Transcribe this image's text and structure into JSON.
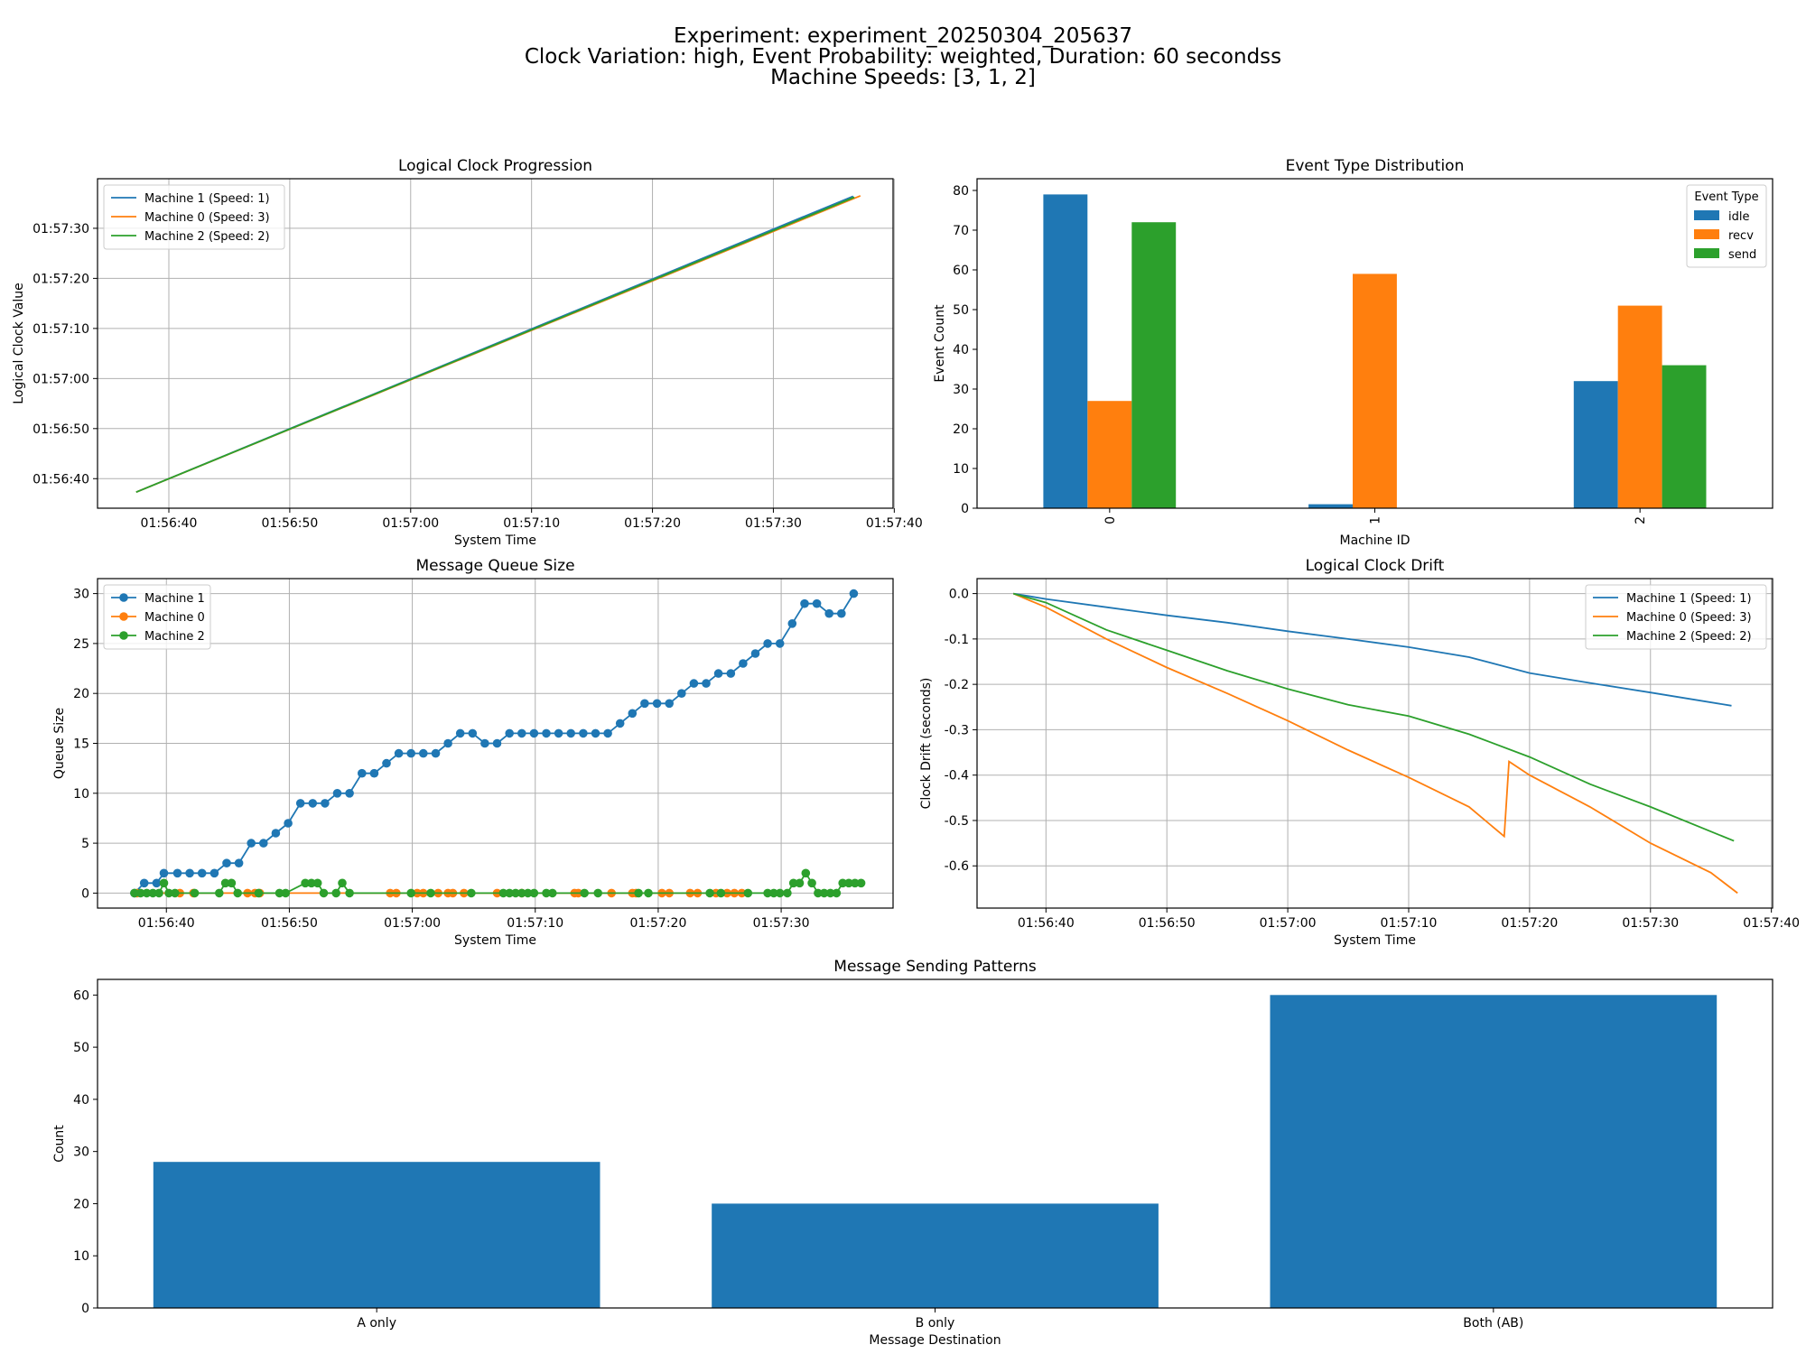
{
  "figure": {
    "suptitle": [
      "Experiment: experiment_20250304_205637",
      "Clock Variation: high, Event Probability: weighted, Duration: 60 secondss",
      "Machine Speeds: [3, 1, 2]"
    ]
  },
  "colors": {
    "machine1": "#1f77b4",
    "machine0": "#ff7f0e",
    "machine2": "#2ca02c",
    "idle": "#1f77b4",
    "recv": "#ff7f0e",
    "send": "#2ca02c",
    "bar": "#1f77b4"
  },
  "chart_data": [
    {
      "id": "clock",
      "type": "line",
      "title": "Logical Clock Progression",
      "xlabel": "System Time",
      "ylabel": "Logical Clock Value",
      "grid": true,
      "legend": "upper-left",
      "xlim": [
        "01:56:34.1",
        "01:57:39.9"
      ],
      "ylim": [
        "01:56:34.1",
        "01:57:39.9"
      ],
      "xticks": [
        "01:56:40",
        "01:56:50",
        "01:57:00",
        "01:57:10",
        "01:57:20",
        "01:57:30",
        "01:57:40"
      ],
      "yticks": [
        "01:56:40",
        "01:56:50",
        "01:57:00",
        "01:57:10",
        "01:57:20",
        "01:57:30"
      ],
      "series": [
        {
          "name": "Machine 1 (Speed: 1)",
          "color": "#1f77b4",
          "points": [
            [
              "01:56:37.3",
              "01:56:37.3"
            ],
            [
              "01:57:36.6",
              "01:57:36.4"
            ]
          ]
        },
        {
          "name": "Machine 0 (Speed: 3)",
          "color": "#ff7f0e",
          "points": [
            [
              "01:56:37.3",
              "01:56:37.3"
            ],
            [
              "01:57:37.2",
              "01:57:36.5"
            ]
          ]
        },
        {
          "name": "Machine 2 (Speed: 2)",
          "color": "#2ca02c",
          "points": [
            [
              "01:56:37.3",
              "01:56:37.3"
            ],
            [
              "01:57:36.7",
              "01:57:36.2"
            ]
          ]
        }
      ]
    },
    {
      "id": "events",
      "type": "bar",
      "title": "Event Type Distribution",
      "xlabel": "Machine ID",
      "ylabel": "Event Count",
      "grid": false,
      "legend": "upper-right",
      "legend_title": "Event Type",
      "categories": [
        "0",
        "1",
        "2"
      ],
      "ylim": [
        0,
        82.95
      ],
      "yticks": [
        0,
        10,
        20,
        30,
        40,
        50,
        60,
        70,
        80
      ],
      "series": [
        {
          "name": "idle",
          "color": "#1f77b4",
          "values": [
            79,
            1,
            32
          ]
        },
        {
          "name": "recv",
          "color": "#ff7f0e",
          "values": [
            27,
            59,
            51
          ]
        },
        {
          "name": "send",
          "color": "#2ca02c",
          "values": [
            72,
            0,
            36
          ]
        }
      ]
    },
    {
      "id": "queue",
      "type": "line",
      "title": "Message Queue Size",
      "xlabel": "System Time",
      "ylabel": "Queue Size",
      "grid": true,
      "legend": "upper-left",
      "xlim": [
        "01:56:34.4",
        "01:57:39.1"
      ],
      "ylim": [
        -1.5,
        31.5
      ],
      "xticks": [
        "01:56:40",
        "01:56:50",
        "01:57:00",
        "01:57:10",
        "01:57:20",
        "01:57:30"
      ],
      "yticks": [
        0,
        5,
        10,
        15,
        20,
        25,
        30
      ],
      "series": [
        {
          "name": "Machine 1",
          "color": "#1f77b4",
          "points": [
            [
              "01:56:37.4",
              0
            ],
            [
              "01:56:38.2",
              1
            ],
            [
              "01:56:39.2",
              1
            ],
            [
              "01:56:39.8",
              2
            ],
            [
              "01:56:40.9",
              2
            ],
            [
              "01:56:41.9",
              2
            ],
            [
              "01:56:42.9",
              2
            ],
            [
              "01:56:43.9",
              2
            ],
            [
              "01:56:44.9",
              3
            ],
            [
              "01:56:45.9",
              3
            ],
            [
              "01:56:46.9",
              5
            ],
            [
              "01:56:47.9",
              5
            ],
            [
              "01:56:48.9",
              6
            ],
            [
              "01:56:49.9",
              7
            ],
            [
              "01:56:50.9",
              9
            ],
            [
              "01:56:51.9",
              9
            ],
            [
              "01:56:52.9",
              9
            ],
            [
              "01:56:53.9",
              10
            ],
            [
              "01:56:54.9",
              10
            ],
            [
              "01:56:55.9",
              12
            ],
            [
              "01:56:56.9",
              12
            ],
            [
              "01:56:57.9",
              13
            ],
            [
              "01:56:58.9",
              14
            ],
            [
              "01:56:59.9",
              14
            ],
            [
              "01:57:00.9",
              14
            ],
            [
              "01:57:01.9",
              14
            ],
            [
              "01:57:02.9",
              15
            ],
            [
              "01:57:03.9",
              16
            ],
            [
              "01:57:04.9",
              16
            ],
            [
              "01:57:05.9",
              15
            ],
            [
              "01:57:06.9",
              15
            ],
            [
              "01:57:07.9",
              16
            ],
            [
              "01:57:08.9",
              16
            ],
            [
              "01:57:09.9",
              16
            ],
            [
              "01:57:10.9",
              16
            ],
            [
              "01:57:11.9",
              16
            ],
            [
              "01:57:12.9",
              16
            ],
            [
              "01:57:13.9",
              16
            ],
            [
              "01:57:14.9",
              16
            ],
            [
              "01:57:15.9",
              16
            ],
            [
              "01:57:16.9",
              17
            ],
            [
              "01:57:17.9",
              18
            ],
            [
              "01:57:18.9",
              19
            ],
            [
              "01:57:19.9",
              19
            ],
            [
              "01:57:20.9",
              19
            ],
            [
              "01:57:21.9",
              20
            ],
            [
              "01:57:22.9",
              21
            ],
            [
              "01:57:23.9",
              21
            ],
            [
              "01:57:24.9",
              22
            ],
            [
              "01:57:25.9",
              22
            ],
            [
              "01:57:26.9",
              23
            ],
            [
              "01:57:27.9",
              24
            ],
            [
              "01:57:28.9",
              25
            ],
            [
              "01:57:29.9",
              25
            ],
            [
              "01:57:30.9",
              27
            ],
            [
              "01:57:31.9",
              29
            ],
            [
              "01:57:32.9",
              29
            ],
            [
              "01:57:33.9",
              28
            ],
            [
              "01:57:34.9",
              28
            ],
            [
              "01:57:35.9",
              30
            ]
          ]
        },
        {
          "name": "Machine 0",
          "color": "#ff7f0e",
          "points": [
            [
              "01:56:37.6",
              0
            ],
            [
              "01:56:41.1",
              0
            ],
            [
              "01:56:42.2",
              0
            ],
            [
              "01:56:46.6",
              0
            ],
            [
              "01:56:47.2",
              0
            ],
            [
              "01:56:47.6",
              0
            ],
            [
              "01:56:58.2",
              0
            ],
            [
              "01:56:58.7",
              0
            ],
            [
              "01:57:00.4",
              0
            ],
            [
              "01:57:00.9",
              0
            ],
            [
              "01:57:02.1",
              0
            ],
            [
              "01:57:02.9",
              0
            ],
            [
              "01:57:03.3",
              0
            ],
            [
              "01:57:04.2",
              0
            ],
            [
              "01:57:06.9",
              0
            ],
            [
              "01:57:08.9",
              0
            ],
            [
              "01:57:13.2",
              0
            ],
            [
              "01:57:13.5",
              0
            ],
            [
              "01:57:16.2",
              0
            ],
            [
              "01:57:17.9",
              0
            ],
            [
              "01:57:18.2",
              0
            ],
            [
              "01:57:20.3",
              0
            ],
            [
              "01:57:20.9",
              0
            ],
            [
              "01:57:22.6",
              0
            ],
            [
              "01:57:23.2",
              0
            ],
            [
              "01:57:24.7",
              0
            ],
            [
              "01:57:25.6",
              0
            ],
            [
              "01:57:26.2",
              0
            ],
            [
              "01:57:26.8",
              0
            ]
          ]
        },
        {
          "name": "Machine 2",
          "color": "#2ca02c",
          "points": [
            [
              "01:56:37.4",
              0
            ],
            [
              "01:56:37.9",
              0
            ],
            [
              "01:56:38.4",
              0
            ],
            [
              "01:56:38.9",
              0
            ],
            [
              "01:56:39.4",
              0
            ],
            [
              "01:56:39.8",
              1
            ],
            [
              "01:56:40.2",
              0
            ],
            [
              "01:56:40.7",
              0
            ],
            [
              "01:56:42.3",
              0
            ],
            [
              "01:56:44.3",
              0
            ],
            [
              "01:56:44.8",
              1
            ],
            [
              "01:56:45.3",
              1
            ],
            [
              "01:56:45.8",
              0
            ],
            [
              "01:56:47.5",
              0
            ],
            [
              "01:56:49.2",
              0
            ],
            [
              "01:56:49.7",
              0
            ],
            [
              "01:56:51.3",
              1
            ],
            [
              "01:56:51.8",
              1
            ],
            [
              "01:56:52.3",
              1
            ],
            [
              "01:56:52.8",
              0
            ],
            [
              "01:56:53.8",
              0
            ],
            [
              "01:56:54.3",
              1
            ],
            [
              "01:56:54.9",
              0
            ],
            [
              "01:56:59.9",
              0
            ],
            [
              "01:57:01.5",
              0
            ],
            [
              "01:57:04.8",
              0
            ],
            [
              "01:57:07.4",
              0
            ],
            [
              "01:57:07.9",
              0
            ],
            [
              "01:57:08.4",
              0
            ],
            [
              "01:57:08.9",
              0
            ],
            [
              "01:57:09.4",
              0
            ],
            [
              "01:57:09.9",
              0
            ],
            [
              "01:57:10.9",
              0
            ],
            [
              "01:57:11.4",
              0
            ],
            [
              "01:57:14.0",
              0
            ],
            [
              "01:57:15.1",
              0
            ],
            [
              "01:57:18.4",
              0
            ],
            [
              "01:57:19.2",
              0
            ],
            [
              "01:57:24.2",
              0
            ],
            [
              "01:57:25.1",
              0
            ],
            [
              "01:57:27.3",
              0
            ],
            [
              "01:57:28.9",
              0
            ],
            [
              "01:57:29.4",
              0
            ],
            [
              "01:57:29.9",
              0
            ],
            [
              "01:57:30.5",
              0
            ],
            [
              "01:57:31.0",
              1
            ],
            [
              "01:57:31.5",
              1
            ],
            [
              "01:57:32.0",
              2
            ],
            [
              "01:57:32.5",
              1
            ],
            [
              "01:57:33.0",
              0
            ],
            [
              "01:57:33.5",
              0
            ],
            [
              "01:57:34.0",
              0
            ],
            [
              "01:57:34.5",
              0
            ],
            [
              "01:57:35.0",
              1
            ],
            [
              "01:57:35.5",
              1
            ],
            [
              "01:57:36.0",
              1
            ],
            [
              "01:57:36.5",
              1
            ]
          ]
        }
      ]
    },
    {
      "id": "drift",
      "type": "line",
      "title": "Logical Clock Drift",
      "xlabel": "System Time",
      "ylabel": "Clock Drift (seconds)",
      "grid": true,
      "legend": "upper-right",
      "xlim": [
        "01:56:34.3",
        "01:57:40.1"
      ],
      "ylim": [
        -0.693,
        0.033
      ],
      "xticks": [
        "01:56:40",
        "01:56:50",
        "01:57:00",
        "01:57:10",
        "01:57:20",
        "01:57:30",
        "01:57:40"
      ],
      "yticks": [
        "0.0",
        "-0.1",
        "-0.2",
        "-0.3",
        "-0.4",
        "-0.5",
        "-0.6"
      ],
      "series": [
        {
          "name": "Machine 1 (Speed: 1)",
          "color": "#1f77b4",
          "points": [
            [
              "01:56:37.3",
              0
            ],
            [
              "01:56:40",
              -0.012
            ],
            [
              "01:56:45",
              -0.03
            ],
            [
              "01:56:50",
              -0.048
            ],
            [
              "01:56:55",
              -0.064
            ],
            [
              "01:57:00",
              -0.083
            ],
            [
              "01:57:05",
              -0.1
            ],
            [
              "01:57:10",
              -0.118
            ],
            [
              "01:57:15",
              -0.14
            ],
            [
              "01:57:20",
              -0.175
            ],
            [
              "01:57:25",
              -0.197
            ],
            [
              "01:57:30",
              -0.218
            ],
            [
              "01:57:36.7",
              -0.247
            ]
          ]
        },
        {
          "name": "Machine 0 (Speed: 3)",
          "color": "#ff7f0e",
          "points": [
            [
              "01:56:37.3",
              0
            ],
            [
              "01:56:40",
              -0.03
            ],
            [
              "01:56:45",
              -0.1
            ],
            [
              "01:56:50",
              -0.163
            ],
            [
              "01:56:55",
              -0.22
            ],
            [
              "01:57:00",
              -0.28
            ],
            [
              "01:57:05",
              -0.345
            ],
            [
              "01:57:10",
              -0.405
            ],
            [
              "01:57:15",
              -0.47
            ],
            [
              "01:57:17.9",
              -0.535
            ],
            [
              "01:57:18.3",
              -0.37
            ],
            [
              "01:57:20",
              -0.4
            ],
            [
              "01:57:25",
              -0.47
            ],
            [
              "01:57:30",
              -0.55
            ],
            [
              "01:57:35",
              -0.615
            ],
            [
              "01:57:37.2",
              -0.66
            ]
          ]
        },
        {
          "name": "Machine 2 (Speed: 2)",
          "color": "#2ca02c",
          "points": [
            [
              "01:56:37.3",
              0
            ],
            [
              "01:56:40",
              -0.02
            ],
            [
              "01:56:45",
              -0.08
            ],
            [
              "01:56:50",
              -0.125
            ],
            [
              "01:56:55",
              -0.17
            ],
            [
              "01:57:00",
              -0.21
            ],
            [
              "01:57:05",
              -0.245
            ],
            [
              "01:57:10",
              -0.27
            ],
            [
              "01:57:15",
              -0.31
            ],
            [
              "01:57:20",
              -0.36
            ],
            [
              "01:57:25",
              -0.42
            ],
            [
              "01:57:30",
              -0.47
            ],
            [
              "01:57:36.9",
              -0.545
            ]
          ]
        }
      ]
    },
    {
      "id": "patterns",
      "type": "bar",
      "title": "Message Sending Patterns",
      "xlabel": "Message Destination",
      "ylabel": "Count",
      "grid": false,
      "categories": [
        "A only",
        "B only",
        "Both (AB)"
      ],
      "values": [
        28,
        20,
        60
      ],
      "ylim": [
        0,
        63
      ],
      "yticks": [
        0,
        10,
        20,
        30,
        40,
        50,
        60
      ]
    }
  ]
}
